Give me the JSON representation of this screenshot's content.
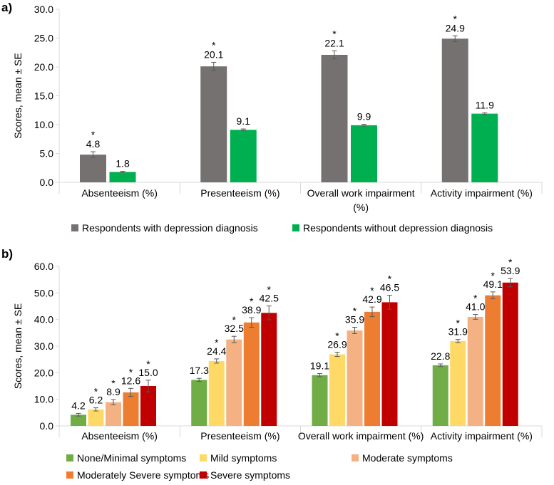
{
  "panels": [
    {
      "label": "a)",
      "chart_data": {
        "type": "bar",
        "title": "",
        "xlabel": "",
        "ylabel": "Scores, mean ± SE",
        "ylim": [
          0,
          30
        ],
        "yticks": [
          0,
          5,
          10,
          15,
          20,
          25,
          30
        ],
        "ytick_labels": [
          "0.0",
          "5.0",
          "10.0",
          "15.0",
          "20.0",
          "25.0",
          "30.0"
        ],
        "categories": [
          [
            "Absenteeism (%)"
          ],
          [
            "Presenteeism (%)"
          ],
          [
            "Overall work impairment",
            "(%)"
          ],
          [
            "Activity impairment (%)"
          ]
        ],
        "grid": false,
        "legend_position": "bottom",
        "series": [
          {
            "name": "Respondents with depression diagnosis",
            "color": "#757171",
            "values": [
              4.8,
              20.1,
              22.1,
              24.9
            ],
            "labels": [
              "4.8",
              "20.1",
              "22.1",
              "24.9"
            ],
            "se": [
              0.5,
              0.7,
              0.7,
              0.5
            ],
            "significant": [
              true,
              true,
              true,
              true
            ]
          },
          {
            "name": "Respondents without depression diagnosis",
            "color": "#00b050",
            "values": [
              1.8,
              9.1,
              9.9,
              11.9
            ],
            "labels": [
              "1.8",
              "9.1",
              "9.9",
              "11.9"
            ],
            "se": [
              0.1,
              0.15,
              0.15,
              0.15
            ],
            "significant": [
              false,
              false,
              false,
              false
            ]
          }
        ]
      }
    },
    {
      "label": "b)",
      "chart_data": {
        "type": "bar",
        "title": "",
        "xlabel": "",
        "ylabel": "Scores, mean ± SE",
        "ylim": [
          0,
          60
        ],
        "yticks": [
          0,
          10,
          20,
          30,
          40,
          50,
          60
        ],
        "ytick_labels": [
          "0.0",
          "10.0",
          "20.0",
          "30.0",
          "40.0",
          "50.0",
          "60.0"
        ],
        "categories": [
          [
            "Absenteeism (%)"
          ],
          [
            "Presenteeism (%)"
          ],
          [
            "Overall work impairment (%)"
          ],
          [
            "Activity impairment (%)"
          ]
        ],
        "grid": false,
        "legend_position": "bottom",
        "series": [
          {
            "name": "None/Minimal symptoms",
            "color": "#70ad47",
            "values": [
              4.2,
              17.3,
              19.1,
              22.8
            ],
            "labels": [
              "4.2",
              "17.3",
              "19.1",
              "22.8"
            ],
            "se": [
              0.5,
              0.6,
              0.6,
              0.5
            ],
            "significant": [
              false,
              false,
              false,
              false
            ]
          },
          {
            "name": "Mild symptoms",
            "color": "#ffd966",
            "values": [
              6.2,
              24.4,
              26.9,
              31.9
            ],
            "labels": [
              "6.2",
              "24.4",
              "26.9",
              "31.9"
            ],
            "se": [
              0.6,
              0.8,
              0.8,
              0.6
            ],
            "significant": [
              true,
              true,
              true,
              true
            ]
          },
          {
            "name": "Moderate symptoms",
            "color": "#f4b183",
            "values": [
              8.9,
              32.5,
              35.9,
              41.0
            ],
            "labels": [
              "8.9",
              "32.5",
              "35.9",
              "41.0"
            ],
            "se": [
              1.0,
              1.2,
              1.2,
              0.9
            ],
            "significant": [
              true,
              true,
              true,
              true
            ]
          },
          {
            "name": "Moderately Severe symptoms",
            "color": "#ed7d31",
            "values": [
              12.6,
              38.9,
              42.9,
              49.1
            ],
            "labels": [
              "12.6",
              "38.9",
              "42.9",
              "49.1"
            ],
            "se": [
              1.5,
              1.8,
              1.8,
              1.3
            ],
            "significant": [
              true,
              true,
              true,
              true
            ]
          },
          {
            "name": "Severe symptoms",
            "color": "#c00000",
            "values": [
              15.0,
              42.5,
              46.5,
              53.9
            ],
            "labels": [
              "15.0",
              "42.5",
              "46.5",
              "53.9"
            ],
            "se": [
              2.2,
              2.6,
              2.6,
              1.6
            ],
            "significant": [
              true,
              true,
              true,
              true
            ]
          }
        ]
      }
    }
  ],
  "significance_marker": "*"
}
